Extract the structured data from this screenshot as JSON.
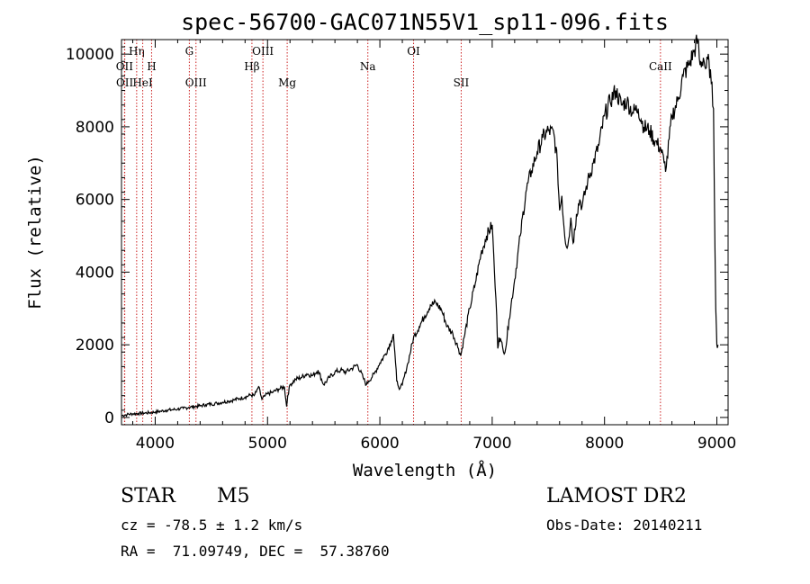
{
  "chart_data": {
    "type": "line",
    "title": "spec-56700-GAC071N55V1_sp11-096.fits",
    "xlabel": "Wavelength (Å)",
    "ylabel": "Flux (relative)",
    "xlim": [
      3700,
      9100
    ],
    "ylim": [
      -200,
      10400
    ],
    "xticks": [
      4000,
      5000,
      6000,
      7000,
      8000,
      9000
    ],
    "yticks": [
      0,
      2000,
      4000,
      6000,
      8000,
      10000
    ],
    "grid": false,
    "series": [
      {
        "x": [
          3700,
          3750,
          3800,
          3850,
          3900,
          3950,
          4000,
          4050,
          4100,
          4150,
          4200,
          4250,
          4300,
          4350,
          4400,
          4450,
          4500,
          4550,
          4600,
          4650,
          4700,
          4750,
          4800,
          4850,
          4880,
          4900,
          4920,
          4950,
          4980,
          5000,
          5050,
          5100,
          5150,
          5170,
          5180,
          5200,
          5250,
          5300,
          5350,
          5400,
          5450,
          5500,
          5550,
          5600,
          5650,
          5700,
          5750,
          5800,
          5850,
          5880,
          5900,
          5950,
          6000,
          6050,
          6100,
          6120,
          6140,
          6150,
          6160,
          6180,
          6200,
          6250,
          6300,
          6350,
          6400,
          6450,
          6500,
          6550,
          6600,
          6650,
          6700,
          6720,
          6750,
          6800,
          6850,
          6900,
          6950,
          7000,
          7020,
          7040,
          7050,
          7060,
          7080,
          7100,
          7120,
          7150,
          7200,
          7250,
          7300,
          7350,
          7400,
          7450,
          7500,
          7550,
          7580,
          7600,
          7620,
          7640,
          7660,
          7680,
          7700,
          7720,
          7750,
          7780,
          7800,
          7850,
          7900,
          7950,
          8000,
          8050,
          8100,
          8150,
          8200,
          8250,
          8300,
          8350,
          8400,
          8450,
          8500,
          8530,
          8550,
          8600,
          8650,
          8700,
          8750,
          8800,
          8830,
          8850,
          8880,
          8900,
          8930,
          8950,
          8970,
          8990,
          9000,
          9010
        ],
        "y": [
          50,
          80,
          100,
          110,
          120,
          130,
          150,
          170,
          200,
          210,
          230,
          250,
          280,
          300,
          320,
          350,
          370,
          390,
          420,
          450,
          480,
          520,
          560,
          620,
          600,
          700,
          850,
          500,
          600,
          650,
          700,
          780,
          850,
          300,
          600,
          900,
          1050,
          1100,
          1200,
          1150,
          1300,
          900,
          1100,
          1250,
          1300,
          1250,
          1350,
          1450,
          1100,
          900,
          1000,
          1200,
          1500,
          1750,
          2100,
          2300,
          1500,
          1000,
          900,
          800,
          900,
          1500,
          2200,
          2500,
          2800,
          3100,
          3150,
          2950,
          2500,
          2300,
          1900,
          1700,
          2200,
          3000,
          3700,
          4500,
          5000,
          5300,
          4000,
          2800,
          1900,
          2200,
          2100,
          1800,
          1900,
          2700,
          3800,
          5000,
          6200,
          6800,
          7300,
          7700,
          7900,
          7800,
          7000,
          5700,
          6100,
          5200,
          4700,
          4900,
          5500,
          4800,
          5600,
          6000,
          5800,
          6500,
          7000,
          7500,
          8300,
          8700,
          9000,
          8600,
          8700,
          8400,
          8500,
          8000,
          7900,
          7600,
          7400,
          7000,
          6900,
          8300,
          8700,
          9400,
          9700,
          10100,
          10400,
          9700,
          9900,
          9600,
          9800,
          9200,
          8500,
          3000,
          2000,
          2000
        ]
      }
    ],
    "line_markers": [
      {
        "label": "Hη",
        "x": 3835,
        "row": 1
      },
      {
        "label": "OII",
        "x": 3727,
        "row": 2
      },
      {
        "label": "H",
        "x": 3968,
        "row": 2
      },
      {
        "label": "OII",
        "x": 3729,
        "row": 3
      },
      {
        "label": "HeI",
        "x": 3889,
        "row": 3
      },
      {
        "label": "G",
        "x": 4304,
        "row": 1
      },
      {
        "label": "OIII",
        "x": 4363,
        "row": 3
      },
      {
        "label": "OIII",
        "x": 4959,
        "row": 1
      },
      {
        "label": "Hβ",
        "x": 4861,
        "row": 2
      },
      {
        "label": "Mg",
        "x": 5175,
        "row": 3
      },
      {
        "label": "Na",
        "x": 5893,
        "row": 2
      },
      {
        "label": "OI",
        "x": 6300,
        "row": 1
      },
      {
        "label": "SII",
        "x": 6724,
        "row": 3
      },
      {
        "label": "CaII",
        "x": 8498,
        "row": 2
      }
    ]
  },
  "info": {
    "object_class": "STAR",
    "subclass": "M5",
    "survey": "LAMOST DR2",
    "cz": "cz = -78.5 ± 1.2 km/s",
    "obs_date": "Obs-Date: 20140211",
    "coords": "RA =  71.09749, DEC =  57.38760"
  },
  "colors": {
    "spectrum": "#000000",
    "marker_line": "#cc2020",
    "axes": "#000000",
    "background": "#ffffff"
  }
}
